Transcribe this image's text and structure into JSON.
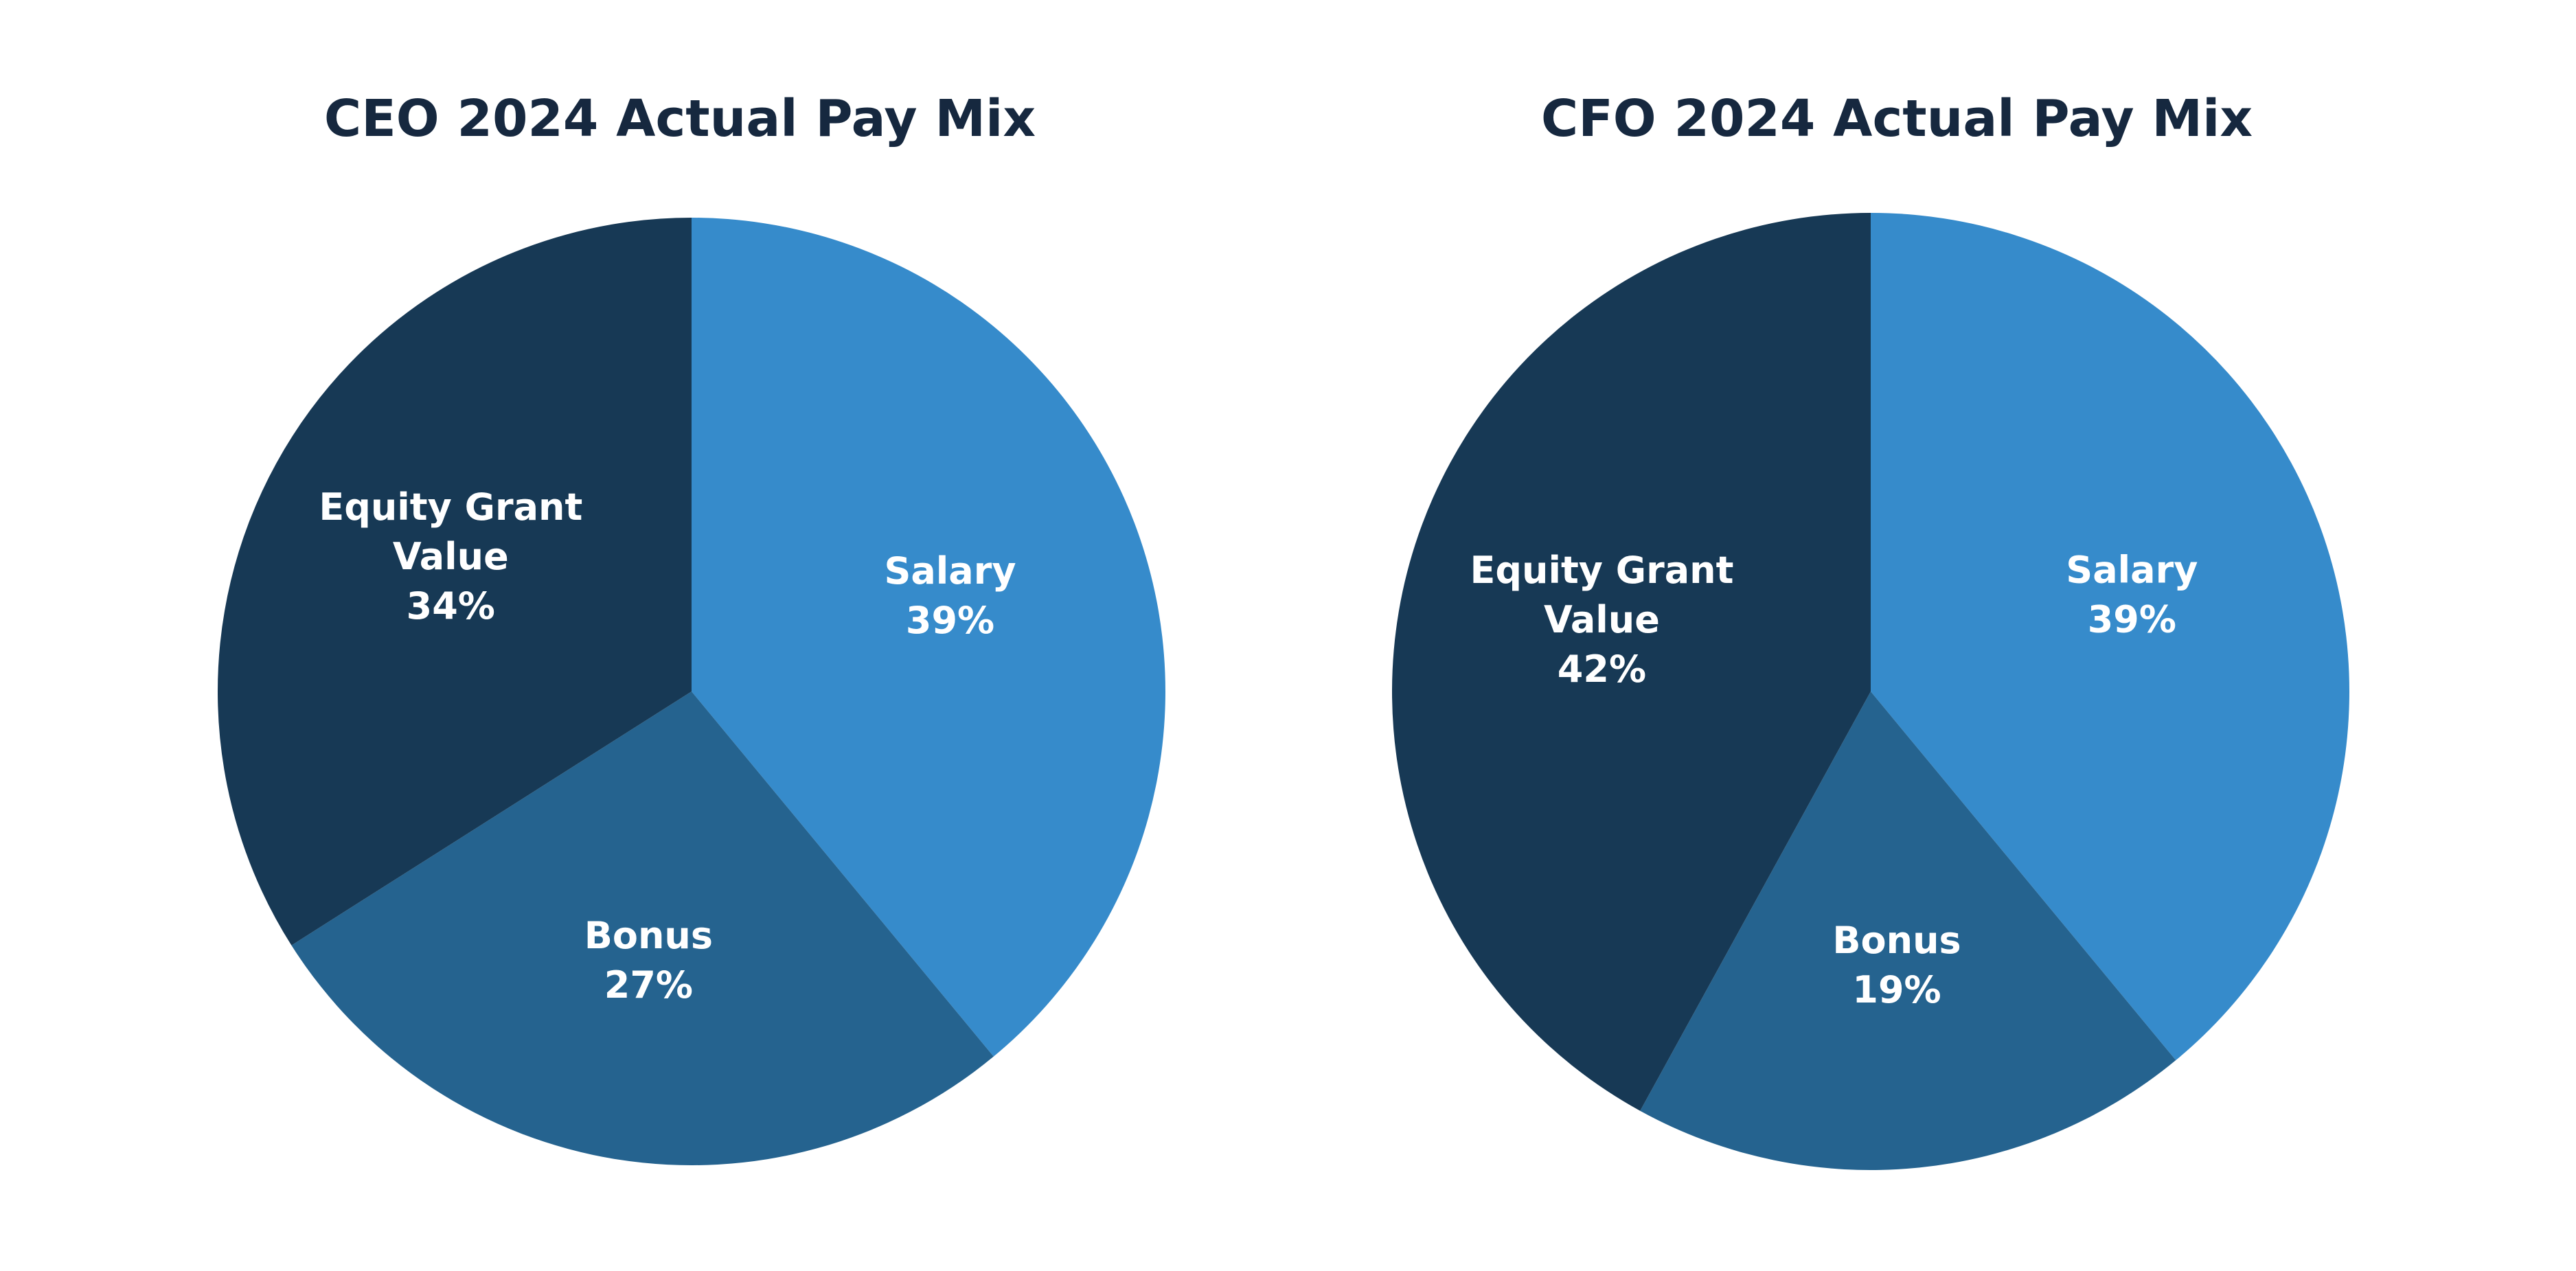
{
  "chart_data": [
    {
      "type": "pie",
      "title": "CEO 2024 Actual Pay Mix",
      "slices": [
        {
          "label": "Salary",
          "value": 39,
          "value_label": "39%",
          "color": "#368bcb"
        },
        {
          "label": "Bonus",
          "value": 27,
          "value_label": "27%",
          "color": "#25638f"
        },
        {
          "label": "Equity Grant Value",
          "value": 34,
          "value_label": "34%",
          "color": "#173955"
        }
      ]
    },
    {
      "type": "pie",
      "title": "CFO 2024 Actual Pay Mix",
      "slices": [
        {
          "label": "Salary",
          "value": 39,
          "value_label": "39%",
          "color": "#368bcb"
        },
        {
          "label": "Bonus",
          "value": 19,
          "value_label": "19%",
          "color": "#25638f"
        },
        {
          "label": "Equity Grant Value",
          "value": 42,
          "value_label": "42%",
          "color": "#173955"
        }
      ]
    }
  ]
}
